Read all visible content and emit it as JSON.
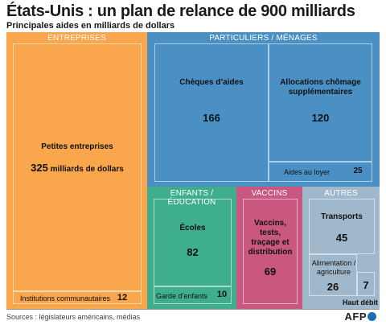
{
  "title": "États-Unis : un plan de relance de 900 milliards",
  "subtitle": "Principales aides en milliards de dollars",
  "chart_data": {
    "type": "treemap",
    "sections": [
      {
        "name": "ENTREPRISES",
        "color": "#f9a64c",
        "items": [
          {
            "label": "Petites entreprises",
            "value": 325,
            "value_text": "325",
            "unit_text": "milliards de dollars"
          },
          {
            "label": "Institutions communautaires",
            "value": 12,
            "value_text": "12"
          }
        ]
      },
      {
        "name": "PARTICULIERS / MÉNAGES",
        "color": "#4a90c4",
        "items": [
          {
            "label": "Chèques d’aides",
            "value": 166,
            "value_text": "166"
          },
          {
            "label": "Allocations chômage supplémentaires",
            "value": 120,
            "value_text": "120"
          },
          {
            "label": "Aides au loyer",
            "value": 25,
            "value_text": "25"
          }
        ]
      },
      {
        "name": "ENFANTS / ÉDUCATION",
        "color": "#3fae8e",
        "items": [
          {
            "label": "Écoles",
            "value": 82,
            "value_text": "82"
          },
          {
            "label": "Garde d’enfants",
            "value": 10,
            "value_text": "10"
          }
        ]
      },
      {
        "name": "VACCINS",
        "color": "#c9577f",
        "items": [
          {
            "label": "Vaccins, tests, traçage et distribution",
            "value": 69,
            "value_text": "69"
          }
        ]
      },
      {
        "name": "AUTRES",
        "color": "#9fb8cc",
        "items": [
          {
            "label": "Transports",
            "value": 45,
            "value_text": "45"
          },
          {
            "label": "Alimentation / agriculture",
            "value": 26,
            "value_text": "26"
          },
          {
            "label": "Haut débit",
            "value": 7,
            "value_text": "7"
          }
        ]
      }
    ]
  },
  "footer": {
    "source": "Sources : législateurs américains, médias",
    "logo_text": "AFP"
  }
}
